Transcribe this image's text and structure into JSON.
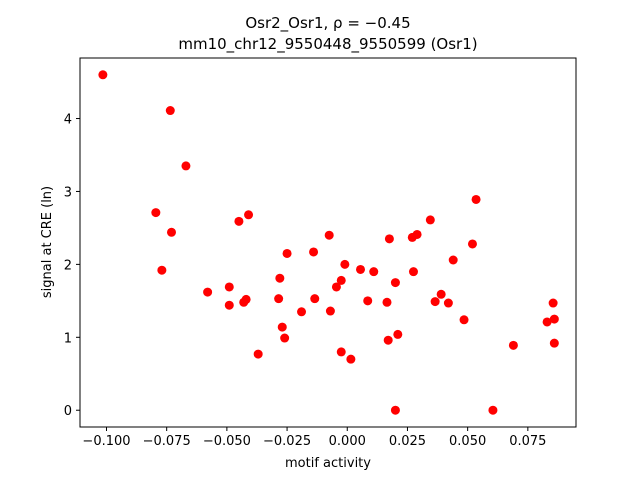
{
  "chart_data": {
    "type": "scatter",
    "title_line1": "Osr2_Osr1, ρ = −0.45",
    "title_line2": "mm10_chr12_9550448_9550599 (Osr1)",
    "xlabel": "motif activity",
    "ylabel": "signal at CRE (ln)",
    "xlim": [
      -0.111,
      0.095
    ],
    "ylim": [
      -0.23,
      4.83
    ],
    "xticks": [
      -0.1,
      -0.075,
      -0.05,
      -0.025,
      0.0,
      0.025,
      0.05,
      0.075
    ],
    "xtick_labels": [
      "−0.100",
      "−0.075",
      "−0.050",
      "−0.025",
      "0.000",
      "0.025",
      "0.050",
      "0.075"
    ],
    "yticks": [
      0,
      1,
      2,
      3,
      4
    ],
    "ytick_labels": [
      "0",
      "1",
      "2",
      "3",
      "4"
    ],
    "marker_color": "#ff0000",
    "grid": false,
    "legend": "none",
    "points": [
      {
        "x": -0.1015,
        "y": 4.6
      },
      {
        "x": -0.0735,
        "y": 4.11
      },
      {
        "x": -0.067,
        "y": 3.35
      },
      {
        "x": -0.0795,
        "y": 2.71
      },
      {
        "x": -0.073,
        "y": 2.44
      },
      {
        "x": -0.041,
        "y": 2.68
      },
      {
        "x": -0.045,
        "y": 2.59
      },
      {
        "x": -0.077,
        "y": 1.92
      },
      {
        "x": -0.058,
        "y": 1.62
      },
      {
        "x": -0.049,
        "y": 1.69
      },
      {
        "x": -0.049,
        "y": 1.44
      },
      {
        "x": -0.043,
        "y": 1.48
      },
      {
        "x": -0.042,
        "y": 1.52
      },
      {
        "x": -0.037,
        "y": 0.77
      },
      {
        "x": -0.025,
        "y": 2.15
      },
      {
        "x": -0.028,
        "y": 1.81
      },
      {
        "x": -0.0285,
        "y": 1.53
      },
      {
        "x": -0.027,
        "y": 1.14
      },
      {
        "x": -0.026,
        "y": 0.99
      },
      {
        "x": -0.019,
        "y": 1.35
      },
      {
        "x": -0.014,
        "y": 2.17
      },
      {
        "x": -0.0135,
        "y": 1.53
      },
      {
        "x": -0.0075,
        "y": 2.4
      },
      {
        "x": -0.007,
        "y": 1.36
      },
      {
        "x": -0.0045,
        "y": 1.69
      },
      {
        "x": -0.0025,
        "y": 1.78
      },
      {
        "x": -0.001,
        "y": 2.0
      },
      {
        "x": -0.0025,
        "y": 0.8
      },
      {
        "x": 0.0015,
        "y": 0.7
      },
      {
        "x": 0.0055,
        "y": 1.93
      },
      {
        "x": 0.0085,
        "y": 1.5
      },
      {
        "x": 0.011,
        "y": 1.9
      },
      {
        "x": 0.0165,
        "y": 1.48
      },
      {
        "x": 0.017,
        "y": 0.96
      },
      {
        "x": 0.0175,
        "y": 2.35
      },
      {
        "x": 0.02,
        "y": 1.75
      },
      {
        "x": 0.021,
        "y": 1.04
      },
      {
        "x": 0.02,
        "y": 0.0
      },
      {
        "x": 0.027,
        "y": 2.37
      },
      {
        "x": 0.029,
        "y": 2.41
      },
      {
        "x": 0.0275,
        "y": 1.9
      },
      {
        "x": 0.0345,
        "y": 2.61
      },
      {
        "x": 0.0365,
        "y": 1.49
      },
      {
        "x": 0.039,
        "y": 1.59
      },
      {
        "x": 0.042,
        "y": 1.47
      },
      {
        "x": 0.044,
        "y": 2.06
      },
      {
        "x": 0.0485,
        "y": 1.24
      },
      {
        "x": 0.052,
        "y": 2.28
      },
      {
        "x": 0.0535,
        "y": 2.89
      },
      {
        "x": 0.0605,
        "y": 0.0
      },
      {
        "x": 0.069,
        "y": 0.89
      },
      {
        "x": 0.083,
        "y": 1.21
      },
      {
        "x": 0.0855,
        "y": 1.47
      },
      {
        "x": 0.086,
        "y": 1.25
      },
      {
        "x": 0.086,
        "y": 0.92
      }
    ]
  }
}
